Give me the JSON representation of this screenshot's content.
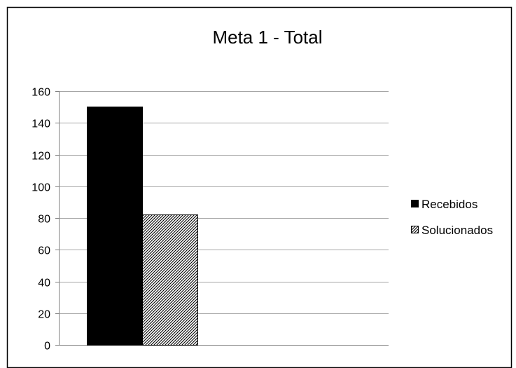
{
  "chart_data": {
    "type": "bar",
    "title": "Meta 1 - Total",
    "xlabel": "",
    "ylabel": "",
    "categories": [
      ""
    ],
    "series": [
      {
        "name": "Recebidos",
        "values": [
          150
        ],
        "fill": "solid",
        "color": "#000000"
      },
      {
        "name": "Solucionados",
        "values": [
          82
        ],
        "fill": "diagonal-hatch",
        "color": "#000000"
      }
    ],
    "ylim": [
      0,
      160
    ],
    "y_ticks": [
      0,
      20,
      40,
      60,
      80,
      100,
      120,
      140,
      160
    ],
    "grid": true,
    "legend": "right"
  }
}
